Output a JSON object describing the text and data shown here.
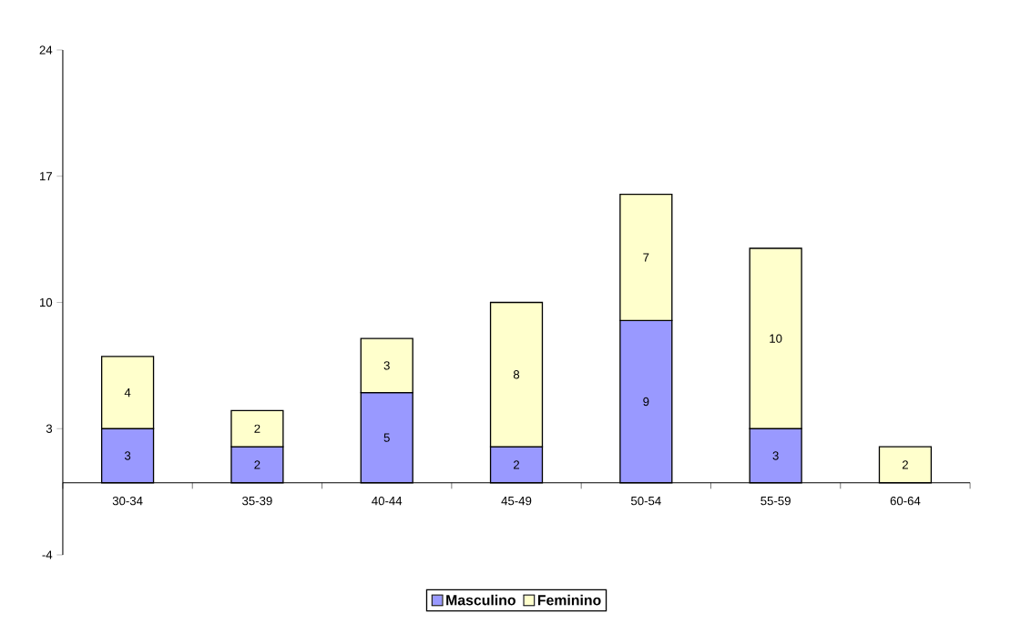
{
  "chart_data": {
    "type": "bar",
    "stacked": true,
    "categories": [
      "30-34",
      "35-39",
      "40-44",
      "45-49",
      "50-54",
      "55-59",
      "60-64"
    ],
    "series": [
      {
        "name": "Masculino",
        "color": "#9999ff",
        "values": [
          3,
          2,
          5,
          2,
          9,
          3,
          null
        ]
      },
      {
        "name": "Feminino",
        "color": "#ffffcc",
        "values": [
          4,
          2,
          3,
          8,
          7,
          10,
          2
        ]
      }
    ],
    "ylim": [
      -4,
      24
    ],
    "yticks": [
      -4,
      3,
      10,
      17,
      24
    ],
    "data_labels": true,
    "legend": "bottom",
    "grid": false
  }
}
